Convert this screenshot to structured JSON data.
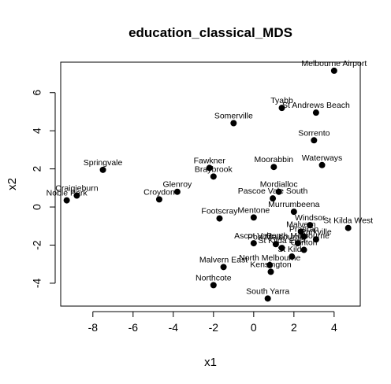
{
  "chart_data": {
    "type": "scatter",
    "title": "education_classical_MDS",
    "xlabel": "x1",
    "ylabel": "x2",
    "xlim": [
      -9.6,
      5.3
    ],
    "ylim": [
      -5.2,
      7.6
    ],
    "xticks": [
      -8,
      -6,
      -4,
      -2,
      0,
      2,
      4
    ],
    "yticks": [
      -4,
      -2,
      0,
      2,
      4,
      6
    ],
    "xtick_labels": [
      "-8",
      "-6",
      "-4",
      "-2",
      "0",
      "2",
      "4"
    ],
    "ytick_labels": [
      "-4",
      "-2",
      "0",
      "2",
      "4",
      "6"
    ],
    "points": [
      {
        "label": "Melbourne Airport",
        "x": 4.0,
        "y": 7.15
      },
      {
        "label": "Tyabb",
        "x": 1.4,
        "y": 5.2
      },
      {
        "label": "St Andrews Beach",
        "x": 3.1,
        "y": 4.95
      },
      {
        "label": "Somerville",
        "x": -1.0,
        "y": 4.4
      },
      {
        "label": "Sorrento",
        "x": 3.0,
        "y": 3.5
      },
      {
        "label": "Waterways",
        "x": 3.4,
        "y": 2.2
      },
      {
        "label": "Springvale",
        "x": -7.5,
        "y": 1.95
      },
      {
        "label": "Fawkner",
        "x": -2.2,
        "y": 2.05
      },
      {
        "label": "Braybrook",
        "x": -2.0,
        "y": 1.6
      },
      {
        "label": "Moorabbin",
        "x": 1.0,
        "y": 2.1
      },
      {
        "label": "Glenroy",
        "x": -3.8,
        "y": 0.8
      },
      {
        "label": "Croydon",
        "x": -4.7,
        "y": 0.4
      },
      {
        "label": "Craigieburn",
        "x": -8.8,
        "y": 0.6
      },
      {
        "label": "Noble Park",
        "x": -9.3,
        "y": 0.35
      },
      {
        "label": "Mordialloc",
        "x": 1.25,
        "y": 0.8
      },
      {
        "label": "Pascoe Vale South",
        "x": 0.95,
        "y": 0.45
      },
      {
        "label": "Murrumbeena",
        "x": 2.0,
        "y": -0.25
      },
      {
        "label": "Footscray",
        "x": -1.7,
        "y": -0.6
      },
      {
        "label": "Mentone",
        "x": 0.0,
        "y": -0.55
      },
      {
        "label": "Windsor",
        "x": 2.8,
        "y": -0.95
      },
      {
        "label": "St Kilda West",
        "x": 4.7,
        "y": -1.1
      },
      {
        "label": "Malvern",
        "x": 2.35,
        "y": -1.3
      },
      {
        "label": "Prahran",
        "x": 2.5,
        "y": -1.55
      },
      {
        "label": "Parkville",
        "x": 3.1,
        "y": -1.7
      },
      {
        "label": "Ascot Vale",
        "x": 0.0,
        "y": -1.9
      },
      {
        "label": "Port Melbourne",
        "x": 1.1,
        "y": -1.95
      },
      {
        "label": "South Melbourne",
        "x": 2.2,
        "y": -1.9
      },
      {
        "label": "St Kilda East",
        "x": 1.4,
        "y": -2.15
      },
      {
        "label": "Carlton",
        "x": 2.5,
        "y": -2.25
      },
      {
        "label": "St Kilda",
        "x": 1.9,
        "y": -2.6
      },
      {
        "label": "North Melbourne",
        "x": 0.8,
        "y": -3.05
      },
      {
        "label": "Malvern East",
        "x": -1.5,
        "y": -3.15
      },
      {
        "label": "Kensington",
        "x": 0.85,
        "y": -3.4
      },
      {
        "label": "Northcote",
        "x": -2.0,
        "y": -4.1
      },
      {
        "label": "South Yarra",
        "x": 0.7,
        "y": -4.8
      }
    ]
  }
}
